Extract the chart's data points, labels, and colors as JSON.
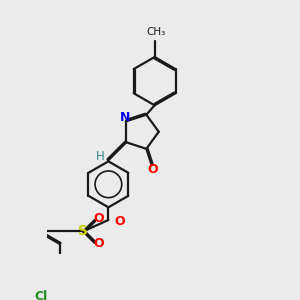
{
  "bg_color": "#ebebeb",
  "bond_color": "#1a1a1a",
  "atom_colors": {
    "N": "#0000ee",
    "O": "#ff0000",
    "S": "#cccc00",
    "Cl": "#228b22",
    "H": "#338888"
  },
  "lw": 1.6,
  "dbo": 0.055
}
